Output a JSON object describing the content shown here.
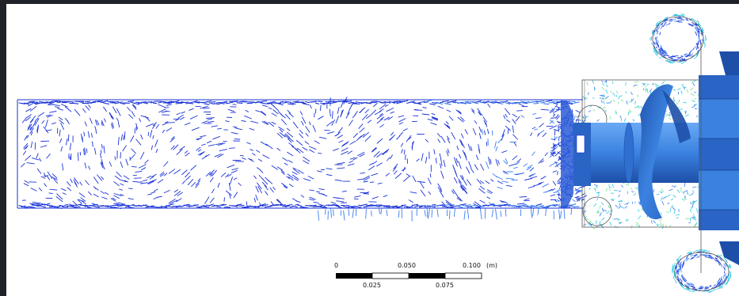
{
  "scale_bar": {
    "labels_top": [
      "0",
      "0.050",
      "0.100"
    ],
    "labels_bottom": [
      "0.025",
      "0.075"
    ],
    "unit": "(m)"
  },
  "colors": {
    "background_frame": "#1f2329",
    "viewport": "#ffffff",
    "vectors_primary": "#1a33d6",
    "vectors_mid": "#3a7df0",
    "vectors_high": "#27c6e0",
    "vectors_peak": "#7ce08a",
    "surface": "#3b82e0",
    "surface_dark": "#1d4fa8"
  }
}
